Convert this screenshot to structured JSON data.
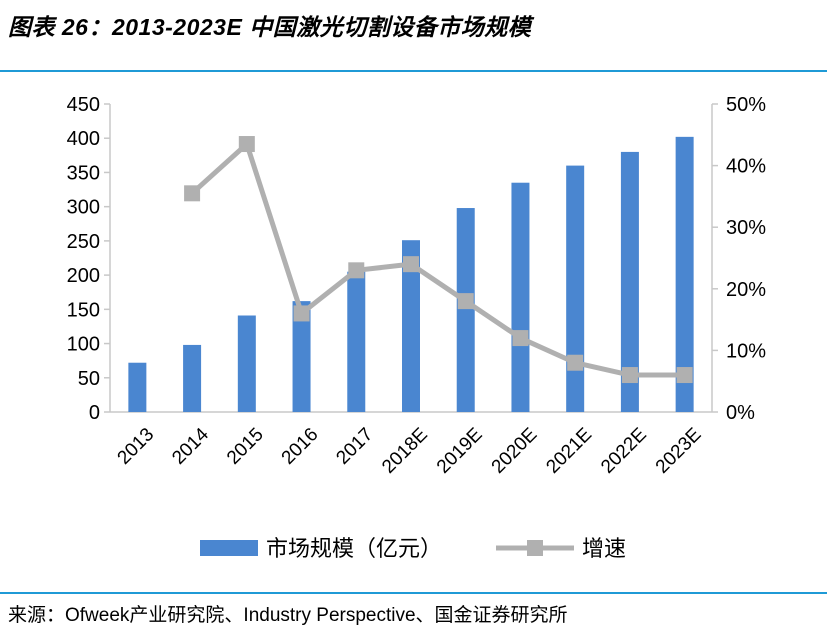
{
  "figure_title": "图表 26：2013-2023E 中国激光切割设备市场规模",
  "source_note": "来源：Ofweek产业研究院、Industry Perspective、国金证券研究所",
  "colors": {
    "bar": "#4a86d0",
    "line": "#b0b0b0",
    "rule": "#1f9ad6"
  },
  "chart_data": {
    "type": "bar",
    "title": "",
    "categories": [
      "2013",
      "2014",
      "2015",
      "2016",
      "2017",
      "2018E",
      "2019E",
      "2020E",
      "2021E",
      "2022E",
      "2023E"
    ],
    "series": [
      {
        "name": "市场规模（亿元）",
        "type": "bar",
        "axis": "left",
        "values": [
          72,
          98,
          141,
          162,
          205,
          251,
          298,
          335,
          360,
          380,
          402
        ]
      },
      {
        "name": "增速",
        "type": "line",
        "axis": "right",
        "values": [
          null,
          0.355,
          0.435,
          0.16,
          0.23,
          0.24,
          0.18,
          0.12,
          0.08,
          0.06,
          0.06
        ]
      }
    ],
    "left_axis": {
      "min": 0,
      "max": 450,
      "ticks": [
        "0",
        "50",
        "100",
        "150",
        "200",
        "250",
        "300",
        "350",
        "400",
        "450"
      ]
    },
    "right_axis": {
      "min": 0,
      "max": 0.5,
      "ticks": [
        "0%",
        "10%",
        "20%",
        "30%",
        "40%",
        "50%"
      ]
    },
    "grid": false,
    "legend_position": "bottom"
  }
}
